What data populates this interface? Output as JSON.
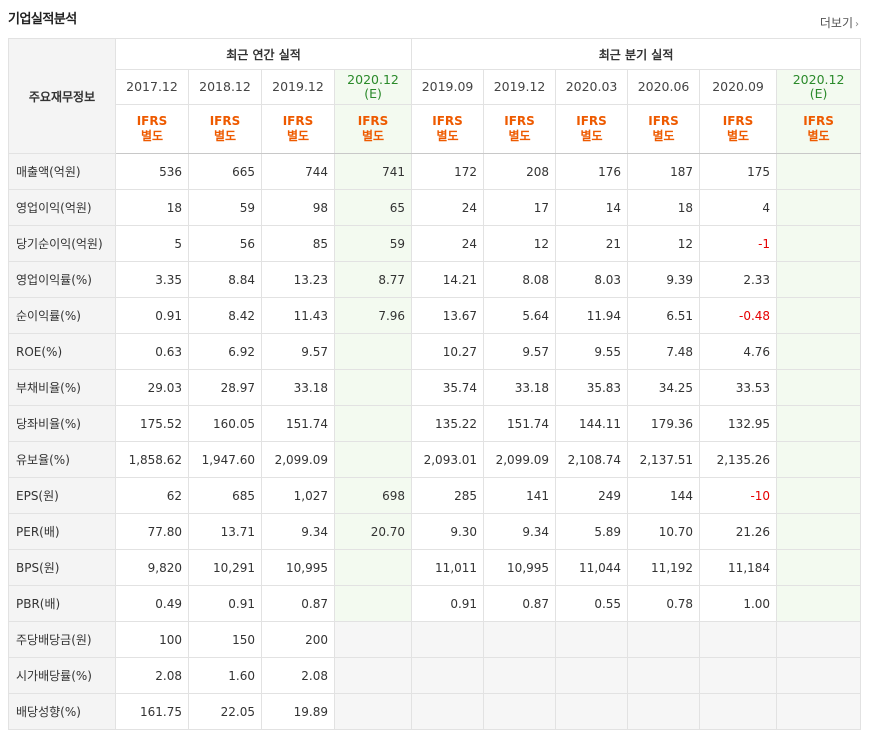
{
  "title": "기업실적분석",
  "more_label": "더보기",
  "row_header": "주요재무정보",
  "groups": {
    "annual": "최근 연간 실적",
    "quarterly": "최근 분기 실적"
  },
  "periods": [
    {
      "main": "2017.12",
      "sub": ""
    },
    {
      "main": "2018.12",
      "sub": ""
    },
    {
      "main": "2019.12",
      "sub": ""
    },
    {
      "main": "2020.12",
      "sub": "(E)"
    },
    {
      "main": "2019.09",
      "sub": ""
    },
    {
      "main": "2019.12",
      "sub": ""
    },
    {
      "main": "2020.03",
      "sub": ""
    },
    {
      "main": "2020.06",
      "sub": ""
    },
    {
      "main": "2020.09",
      "sub": ""
    },
    {
      "main": "2020.12",
      "sub": "(E)"
    }
  ],
  "basis": {
    "line1": "IFRS",
    "line2": "별도"
  },
  "rows": [
    {
      "label": "매출액(억원)",
      "values": [
        "536",
        "665",
        "744",
        "741",
        "172",
        "208",
        "176",
        "187",
        "175",
        ""
      ]
    },
    {
      "label": "영업이익(억원)",
      "values": [
        "18",
        "59",
        "98",
        "65",
        "24",
        "17",
        "14",
        "18",
        "4",
        ""
      ]
    },
    {
      "label": "당기순이익(억원)",
      "values": [
        "5",
        "56",
        "85",
        "59",
        "24",
        "12",
        "21",
        "12",
        "-1",
        ""
      ]
    },
    {
      "label": "영업이익률(%)",
      "values": [
        "3.35",
        "8.84",
        "13.23",
        "8.77",
        "14.21",
        "8.08",
        "8.03",
        "9.39",
        "2.33",
        ""
      ]
    },
    {
      "label": "순이익률(%)",
      "values": [
        "0.91",
        "8.42",
        "11.43",
        "7.96",
        "13.67",
        "5.64",
        "11.94",
        "6.51",
        "-0.48",
        ""
      ]
    },
    {
      "label": "ROE(%)",
      "values": [
        "0.63",
        "6.92",
        "9.57",
        "",
        "10.27",
        "9.57",
        "9.55",
        "7.48",
        "4.76",
        ""
      ]
    },
    {
      "label": "부채비율(%)",
      "values": [
        "29.03",
        "28.97",
        "33.18",
        "",
        "35.74",
        "33.18",
        "35.83",
        "34.25",
        "33.53",
        ""
      ]
    },
    {
      "label": "당좌비율(%)",
      "values": [
        "175.52",
        "160.05",
        "151.74",
        "",
        "135.22",
        "151.74",
        "144.11",
        "179.36",
        "132.95",
        ""
      ]
    },
    {
      "label": "유보율(%)",
      "values": [
        "1,858.62",
        "1,947.60",
        "2,099.09",
        "",
        "2,093.01",
        "2,099.09",
        "2,108.74",
        "2,137.51",
        "2,135.26",
        ""
      ]
    },
    {
      "label": "EPS(원)",
      "values": [
        "62",
        "685",
        "1,027",
        "698",
        "285",
        "141",
        "249",
        "144",
        "-10",
        ""
      ]
    },
    {
      "label": "PER(배)",
      "values": [
        "77.80",
        "13.71",
        "9.34",
        "20.70",
        "9.30",
        "9.34",
        "5.89",
        "10.70",
        "21.26",
        ""
      ]
    },
    {
      "label": "BPS(원)",
      "values": [
        "9,820",
        "10,291",
        "10,995",
        "",
        "11,011",
        "10,995",
        "11,044",
        "11,192",
        "11,184",
        ""
      ]
    },
    {
      "label": "PBR(배)",
      "values": [
        "0.49",
        "0.91",
        "0.87",
        "",
        "0.91",
        "0.87",
        "0.55",
        "0.78",
        "1.00",
        ""
      ]
    },
    {
      "label": "주당배당금(원)",
      "values": [
        "100",
        "150",
        "200",
        "",
        "",
        "",
        "",
        "",
        "",
        ""
      ]
    },
    {
      "label": "시가배당률(%)",
      "values": [
        "2.08",
        "1.60",
        "2.08",
        "",
        "",
        "",
        "",
        "",
        "",
        ""
      ]
    },
    {
      "label": "배당성향(%)",
      "values": [
        "161.75",
        "22.05",
        "19.89",
        "",
        "",
        "",
        "",
        "",
        "",
        ""
      ]
    }
  ]
}
